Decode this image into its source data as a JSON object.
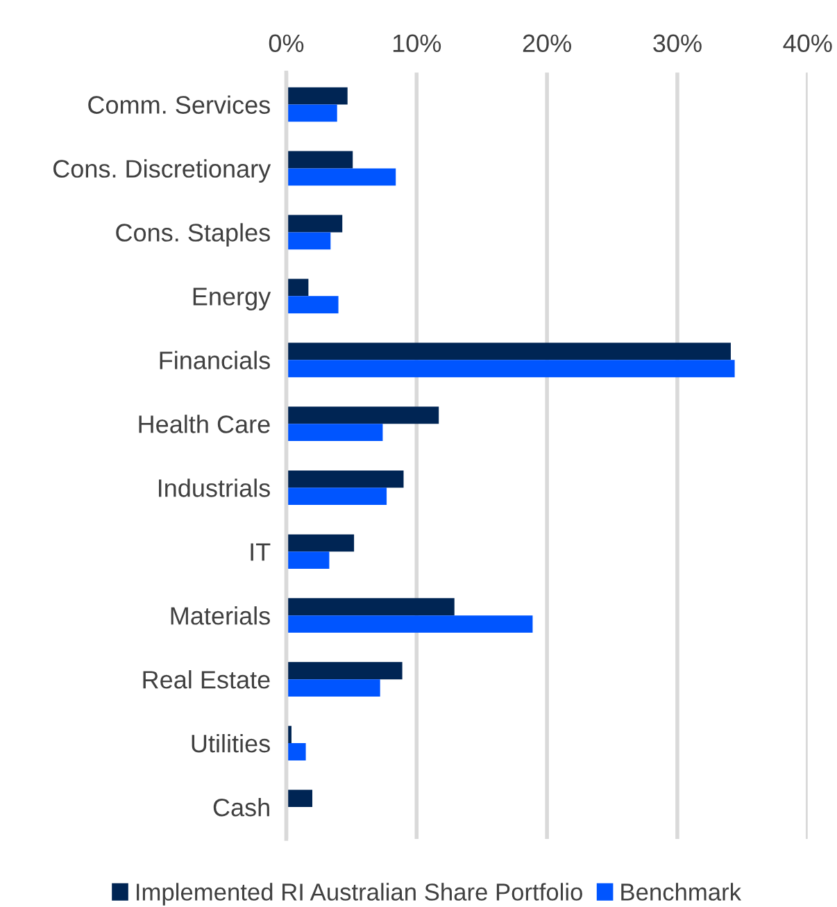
{
  "chart_data": {
    "type": "bar",
    "orientation": "horizontal",
    "categories": [
      "Comm. Services",
      "Cons. Discretionary",
      "Cons. Staples",
      "Energy",
      "Financials",
      "Health Care",
      "Industrials",
      "IT",
      "Materials",
      "Real Estate",
      "Utilities",
      "Cash"
    ],
    "series": [
      {
        "name": "Implemented RI Australian Share Portfolio",
        "color": "#002554",
        "values": [
          4.7,
          5.1,
          4.3,
          1.7,
          34.1,
          11.7,
          9.0,
          5.2,
          12.9,
          8.9,
          0.4,
          2.0
        ]
      },
      {
        "name": "Benchmark",
        "color": "#0055ff",
        "values": [
          3.9,
          8.4,
          3.4,
          4.0,
          34.4,
          7.4,
          7.7,
          3.3,
          18.9,
          7.2,
          1.5,
          null
        ]
      }
    ],
    "xlim": [
      0,
      40
    ],
    "xticks": [
      {
        "value": 0,
        "label": "0%"
      },
      {
        "value": 10,
        "label": "10%"
      },
      {
        "value": 20,
        "label": "20%"
      },
      {
        "value": 30,
        "label": "30%"
      },
      {
        "value": 40,
        "label": "40%"
      }
    ],
    "grid": "x",
    "legend": "bottom"
  }
}
